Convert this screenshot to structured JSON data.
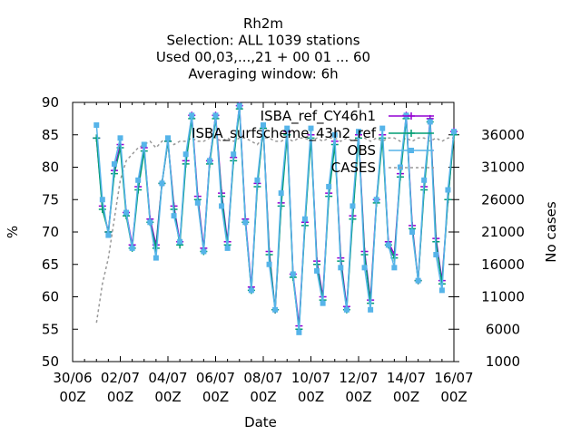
{
  "chart_data": {
    "type": "line",
    "title_lines": [
      "Rh2m",
      "Selection: ALL    1039 stations",
      "Used  00,03,...,21  + 00 01 ... 60",
      "Averaging window:  6h"
    ],
    "xlabel": "Date",
    "ylabel": "%",
    "y2label": "No cases",
    "x_tick_labels": [
      {
        "day": 0,
        "top": "30/06",
        "bottom": "00Z"
      },
      {
        "day": 2,
        "top": "02/07",
        "bottom": "00Z"
      },
      {
        "day": 4,
        "top": "04/07",
        "bottom": "00Z"
      },
      {
        "day": 6,
        "top": "06/07",
        "bottom": "00Z"
      },
      {
        "day": 8,
        "top": "08/07",
        "bottom": "00Z"
      },
      {
        "day": 10,
        "top": "10/07",
        "bottom": "00Z"
      },
      {
        "day": 12,
        "top": "12/07",
        "bottom": "00Z"
      },
      {
        "day": 14,
        "top": "14/07",
        "bottom": "00Z"
      },
      {
        "day": 16,
        "top": "16/07",
        "bottom": "00Z"
      }
    ],
    "xlim": [
      0,
      16
    ],
    "ylim": [
      50,
      90
    ],
    "yticks": [
      50,
      55,
      60,
      65,
      70,
      75,
      80,
      85,
      90
    ],
    "y2lim": [
      1000,
      41000
    ],
    "y2ticks": [
      1000,
      6000,
      11000,
      16000,
      21000,
      26000,
      31000,
      36000
    ],
    "x": [
      1.0,
      1.25,
      1.5,
      1.75,
      2.0,
      2.25,
      2.5,
      2.75,
      3.0,
      3.25,
      3.5,
      3.75,
      4.0,
      4.25,
      4.5,
      4.75,
      5.0,
      5.25,
      5.5,
      5.75,
      6.0,
      6.25,
      6.5,
      6.75,
      7.0,
      7.25,
      7.5,
      7.75,
      8.0,
      8.25,
      8.5,
      8.75,
      9.0,
      9.25,
      9.5,
      9.75,
      10.0,
      10.25,
      10.5,
      10.75,
      11.0,
      11.25,
      11.5,
      11.75,
      12.0,
      12.25,
      12.5,
      12.75,
      13.0,
      13.25,
      13.5,
      13.75,
      14.0,
      14.25,
      14.5,
      14.75,
      15.0,
      15.25,
      15.5,
      15.75,
      16.0
    ],
    "series": [
      {
        "name": "ISBA_ref_CY46h1",
        "color": "#9400d3",
        "values": [
          84.5,
          74,
          70,
          79.5,
          83.5,
          73,
          68,
          77,
          83,
          72,
          68,
          77.5,
          84,
          74,
          68.5,
          81,
          88,
          75.5,
          67.5,
          81,
          88,
          76,
          68.5,
          81.5,
          89.5,
          72,
          61.5,
          77.5,
          86,
          67,
          58,
          74.5,
          85.5,
          63.5,
          55.5,
          71.5,
          85,
          65.5,
          60,
          76,
          84,
          66,
          58.5,
          72.5,
          85,
          67,
          59.5,
          75,
          85,
          68.5,
          66.5,
          79,
          88,
          71,
          62.5,
          77,
          87.5,
          69,
          62.5,
          75,
          85.5
        ]
      },
      {
        "name": "ISBA_surfscheme_43h2_ref",
        "color": "#009e73",
        "values": [
          84.5,
          73.5,
          70,
          79,
          83,
          72.5,
          67.5,
          76.5,
          82.5,
          71.5,
          67.5,
          77.5,
          84,
          73.5,
          68,
          80.5,
          87.5,
          75,
          67,
          80.5,
          87.5,
          75.5,
          68,
          81,
          89,
          71.5,
          61,
          77,
          86,
          66.5,
          58,
          74,
          85,
          63,
          55,
          71,
          84.5,
          65,
          59.5,
          75.5,
          83.5,
          65.5,
          58,
          72,
          84.5,
          66.5,
          59,
          74.5,
          84.5,
          68,
          66,
          78.5,
          87.5,
          70.5,
          62.5,
          76.5,
          87,
          68.5,
          62,
          75,
          85
        ]
      },
      {
        "name": "OBS",
        "color": "#56b4e9",
        "values": [
          86.5,
          75,
          69.5,
          80.5,
          84.5,
          73,
          67.5,
          78,
          83.5,
          71.5,
          66,
          77.5,
          84.5,
          72.5,
          68.5,
          82,
          88,
          74.5,
          67,
          81,
          88,
          74,
          67.5,
          82,
          89.5,
          71.5,
          61,
          78,
          86.5,
          65,
          58,
          76,
          86,
          63.5,
          54.5,
          72,
          86,
          64,
          59,
          77,
          85,
          64.5,
          58,
          74,
          85.5,
          64.5,
          58,
          75,
          86,
          68,
          64.5,
          80,
          88,
          70,
          62.5,
          78,
          87,
          66.5,
          61,
          76.5,
          85.5
        ]
      }
    ],
    "cases_series": {
      "name": "CASES",
      "color": "#999999",
      "values": [
        7000,
        13000,
        17000,
        23000,
        29000,
        32000,
        33000,
        34000,
        34500,
        35000,
        34000,
        35000,
        35500,
        34500,
        35000,
        35000,
        35500,
        35000,
        35000,
        35500,
        35500,
        35000,
        35500,
        35000,
        35500,
        35500,
        35000,
        34500,
        35500,
        35500,
        35000,
        35000,
        35500,
        35000,
        35500,
        35500,
        35000,
        35500,
        35000,
        35500,
        35500,
        35000,
        35500,
        35000,
        35500,
        35500,
        35000,
        35500,
        35000,
        35500,
        35500,
        35000,
        35500,
        35000,
        35500,
        35500,
        35000,
        35500,
        35000,
        35500,
        35500
      ]
    },
    "legend_position": "top-right",
    "grid": false
  }
}
